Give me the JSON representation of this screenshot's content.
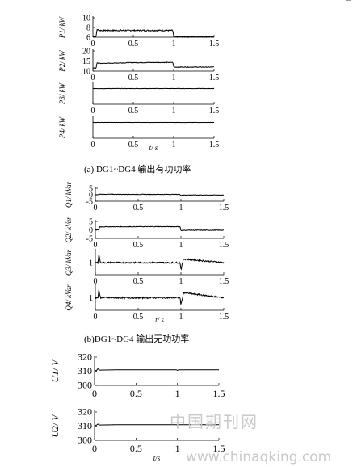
{
  "captions": {
    "a": "(a) DG1~DG4 输出有功功率",
    "b": "(b)DG1~DG4 输出无功功率"
  },
  "watermark": {
    "top": "中国期刊网",
    "bottom": "www.chinaqking.com"
  },
  "colors": {
    "line": "#000000",
    "watermark": "#c9c9c9"
  },
  "chart_data": [
    {
      "type": "line",
      "group": "a",
      "ylabel": "P1/ kW",
      "ylim": [
        6,
        10
      ],
      "yticks": [
        6,
        8,
        10
      ],
      "xlim": [
        0,
        1.5
      ],
      "xticks": [
        0,
        0.5,
        1,
        1.5
      ],
      "xticklabels": [
        "0",
        "0.5",
        "1",
        "1.5"
      ],
      "x": [
        0,
        0.04,
        0.05,
        0.08,
        0.3,
        0.6,
        0.99,
        1.0,
        1.01,
        1.5
      ],
      "y": [
        6.2,
        6.2,
        7.6,
        7.4,
        7.4,
        7.4,
        7.4,
        6.2,
        6.1,
        6.1
      ],
      "noise": 0.25
    },
    {
      "type": "line",
      "group": "a",
      "ylabel": "P2/ kW",
      "ylim": [
        10,
        20
      ],
      "yticks": [
        10,
        15,
        20
      ],
      "xlim": [
        0,
        1.5
      ],
      "xticks": [
        0,
        0.5,
        1,
        1.5
      ],
      "xticklabels": [
        "0",
        "0.5",
        "1",
        "1.5"
      ],
      "x": [
        0,
        0.04,
        0.05,
        0.1,
        0.5,
        0.99,
        1.0,
        1.5
      ],
      "y": [
        11.5,
        11.5,
        14.0,
        13.8,
        14.2,
        14.3,
        12.0,
        12.0
      ],
      "noise": 0.3
    },
    {
      "type": "line",
      "group": "a",
      "ylabel": "P3/ kW",
      "ylim": [
        0,
        10
      ],
      "yticks": [],
      "xlim": [
        0,
        1.5
      ],
      "xticks": [
        0,
        0.5,
        1,
        1.5
      ],
      "xticklabels": [
        "0",
        "0.5",
        "1",
        "1.5"
      ],
      "x": [
        0,
        1.5
      ],
      "y": [
        7.5,
        7.5
      ],
      "noise": 0.15
    },
    {
      "type": "line",
      "group": "a",
      "ylabel": "P4/ kW",
      "xlabel": "t/ s",
      "ylim": [
        0,
        10
      ],
      "yticks": [],
      "xlim": [
        0,
        1.5
      ],
      "xticks": [
        0,
        0.5,
        1,
        1.5
      ],
      "xticklabels": [
        "0",
        "0.5",
        "1",
        "1.5"
      ],
      "x": [
        0,
        1.5
      ],
      "y": [
        7.5,
        7.5
      ],
      "noise": 0.1
    },
    {
      "type": "line",
      "group": "b",
      "ylabel": "Q1/ kVar",
      "ylim": [
        -5,
        5
      ],
      "yticks": [
        -5,
        0,
        5
      ],
      "xlim": [
        0,
        1.5
      ],
      "xticks": [
        0,
        0.5,
        1,
        1.5
      ],
      "xticklabels": [
        "0",
        "0.5",
        "1",
        "1.5"
      ],
      "x": [
        0,
        0.04,
        0.05,
        0.5,
        0.99,
        1.0,
        1.01,
        1.5
      ],
      "y": [
        0,
        0,
        0.4,
        0.3,
        0.3,
        -0.8,
        -0.2,
        -0.2
      ],
      "noise": 0.35
    },
    {
      "type": "line",
      "group": "b",
      "ylabel": "Q2/ kVar",
      "ylim": [
        -5,
        5
      ],
      "yticks": [
        -5,
        0,
        5
      ],
      "xlim": [
        0,
        1.5
      ],
      "xticks": [
        0,
        0.5,
        1,
        1.5
      ],
      "xticklabels": [
        "0",
        "0.5",
        "1",
        "1.5"
      ],
      "x": [
        0,
        0.04,
        0.05,
        0.5,
        0.99,
        1.0,
        1.05,
        1.5
      ],
      "y": [
        0,
        0,
        1.8,
        1.9,
        1.9,
        -0.5,
        -0.2,
        -0.2
      ],
      "noise": 0.35
    },
    {
      "type": "line",
      "group": "b",
      "ylabel": "Q3/ kVar",
      "ylim": [
        0,
        2
      ],
      "yticks": [
        1
      ],
      "xlim": [
        0,
        1.5
      ],
      "xticks": [
        0,
        0.5,
        1,
        1.5
      ],
      "xticklabels": [
        "0",
        "0.5",
        "1",
        "1.5"
      ],
      "x": [
        0,
        0.03,
        0.04,
        0.06,
        0.5,
        0.99,
        1.0,
        1.03,
        1.5
      ],
      "y": [
        1.0,
        1.0,
        1.7,
        1.0,
        1.0,
        1.0,
        0.4,
        1.3,
        1.0
      ],
      "noise": 0.12
    },
    {
      "type": "line",
      "group": "b",
      "ylabel": "Q4/ kVar",
      "xlabel": "t/ s",
      "ylim": [
        0,
        2
      ],
      "yticks": [
        1
      ],
      "xlim": [
        0,
        1.5
      ],
      "xticks": [
        0,
        0.5,
        1,
        1.5
      ],
      "xticklabels": [
        "0",
        "0.5",
        "1",
        "1.5"
      ],
      "x": [
        0,
        0.03,
        0.04,
        0.06,
        0.5,
        0.99,
        1.0,
        1.03,
        1.5
      ],
      "y": [
        1.0,
        1.0,
        1.6,
        1.0,
        1.0,
        1.0,
        0.4,
        1.4,
        1.0
      ],
      "noise": 0.12
    },
    {
      "type": "line",
      "group": "c",
      "ylabel": "U1/ V",
      "ylim": [
        300,
        320
      ],
      "yticks": [
        300,
        310,
        320
      ],
      "xlim": [
        0,
        1.5
      ],
      "xticks": [
        0,
        0.5,
        1,
        1.5
      ],
      "xticklabels": [
        "0",
        "0.5",
        "1",
        "1.5"
      ],
      "x": [
        0,
        0.02,
        0.04,
        0.06,
        0.3,
        0.99,
        1.0,
        1.01,
        1.5
      ],
      "y": [
        311,
        310.2,
        311.8,
        310.8,
        311,
        311,
        310.5,
        311,
        311
      ],
      "noise": 0.05
    },
    {
      "type": "line",
      "group": "c",
      "ylabel": "U2/ V",
      "xlabel": "t/s",
      "ylim": [
        300,
        320
      ],
      "yticks": [
        300,
        310,
        320
      ],
      "xlim": [
        0,
        1.5
      ],
      "xticks": [
        0,
        0.5,
        1,
        1.5
      ],
      "xticklabels": [
        "0",
        "0.5",
        "1",
        "1.5"
      ],
      "x": [
        0,
        0.02,
        0.04,
        0.06,
        0.3,
        0.99,
        1.0,
        1.01,
        1.5
      ],
      "y": [
        311,
        310.5,
        311.5,
        310.8,
        311,
        311,
        310.6,
        311,
        311
      ],
      "noise": 0.05
    }
  ]
}
